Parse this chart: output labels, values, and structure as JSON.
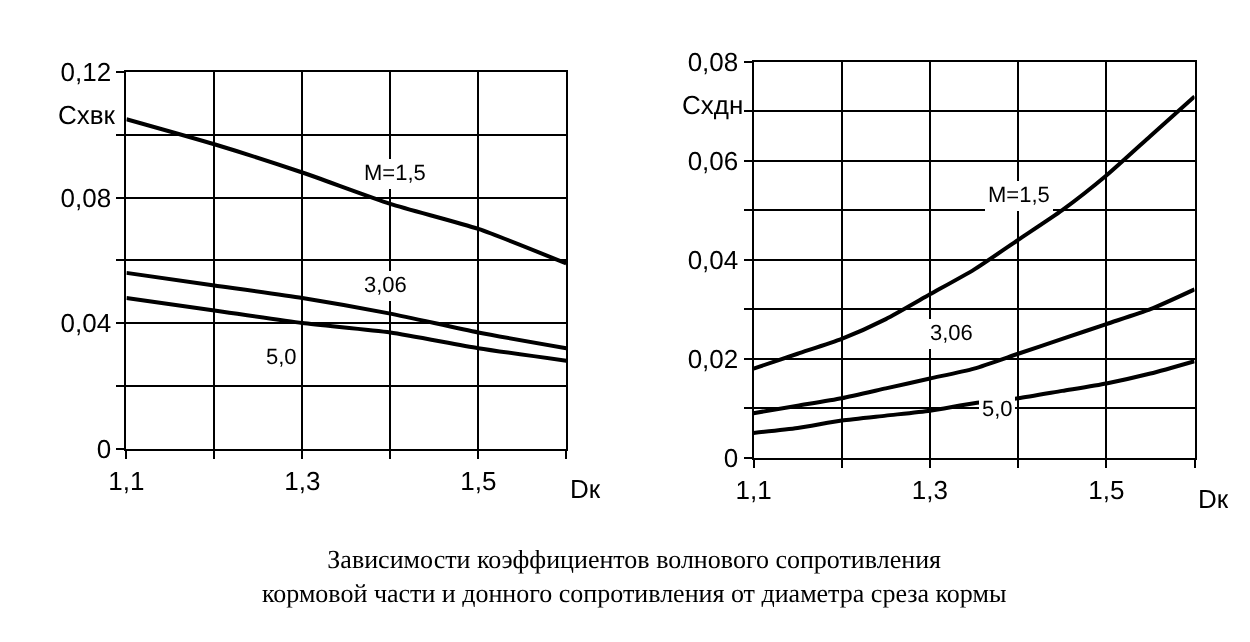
{
  "chart_data": [
    {
      "type": "line",
      "ylabel": "Cхвк",
      "xlabel": "Dк",
      "marker": "none",
      "line_style": "solid",
      "grid": true,
      "x": [
        1.1,
        1.2,
        1.3,
        1.4,
        1.5,
        1.6
      ],
      "xlim": [
        1.1,
        1.6
      ],
      "xticks": [
        {
          "value": 1.1,
          "label": "1,1"
        },
        {
          "value": 1.2,
          "label": null
        },
        {
          "value": 1.3,
          "label": "1,3"
        },
        {
          "value": 1.4,
          "label": null
        },
        {
          "value": 1.5,
          "label": "1,5"
        },
        {
          "value": 1.6,
          "label": null
        }
      ],
      "ylim": [
        0,
        0.12
      ],
      "yticks": [
        {
          "value": 0,
          "label": "0"
        },
        {
          "value": 0.02,
          "label": null
        },
        {
          "value": 0.04,
          "label": "0,04"
        },
        {
          "value": 0.06,
          "label": null
        },
        {
          "value": 0.08,
          "label": "0,08"
        },
        {
          "value": 0.1,
          "label": null
        },
        {
          "value": 0.12,
          "label": "0,12"
        }
      ],
      "series": [
        {
          "name": "M=1,5",
          "color": "#000000",
          "values": [
            0.105,
            0.097,
            0.088,
            0.078,
            0.07,
            0.059
          ]
        },
        {
          "name": "3,06",
          "color": "#000000",
          "values": [
            0.056,
            0.052,
            0.048,
            0.043,
            0.037,
            0.032
          ]
        },
        {
          "name": "5,0",
          "color": "#000000",
          "values": [
            0.048,
            0.044,
            0.04,
            0.037,
            0.032,
            0.028
          ]
        }
      ],
      "annotations": [
        "Зависимости коэффициентов волнового сопротивления\nкормовой части и донного сопротивления от диаметра среза кормы"
      ]
    },
    {
      "type": "line",
      "ylabel": "Cхдн",
      "xlabel": "Dк",
      "marker": "none",
      "line_style": "solid",
      "grid": true,
      "x": [
        1.1,
        1.15,
        1.2,
        1.25,
        1.3,
        1.35,
        1.4,
        1.45,
        1.5,
        1.55,
        1.6
      ],
      "xlim": [
        1.1,
        1.6
      ],
      "xticks": [
        {
          "value": 1.1,
          "label": "1,1"
        },
        {
          "value": 1.2,
          "label": null
        },
        {
          "value": 1.3,
          "label": "1,3"
        },
        {
          "value": 1.4,
          "label": null
        },
        {
          "value": 1.5,
          "label": "1,5"
        },
        {
          "value": 1.6,
          "label": null
        }
      ],
      "ylim": [
        0,
        0.08
      ],
      "yticks": [
        {
          "value": 0,
          "label": "0"
        },
        {
          "value": 0.01,
          "label": null
        },
        {
          "value": 0.02,
          "label": "0,02"
        },
        {
          "value": 0.03,
          "label": null
        },
        {
          "value": 0.04,
          "label": "0,04"
        },
        {
          "value": 0.05,
          "label": null
        },
        {
          "value": 0.06,
          "label": "0,06"
        },
        {
          "value": 0.07,
          "label": null
        },
        {
          "value": 0.08,
          "label": "0,08"
        }
      ],
      "series": [
        {
          "name": "M=1,5",
          "color": "#000000",
          "values": [
            0.018,
            0.021,
            0.024,
            0.028,
            0.033,
            0.038,
            0.044,
            0.05,
            0.057,
            0.065,
            0.073
          ]
        },
        {
          "name": "3,06",
          "color": "#000000",
          "values": [
            0.009,
            0.0105,
            0.012,
            0.014,
            0.016,
            0.018,
            0.021,
            0.024,
            0.027,
            0.03,
            0.034
          ]
        },
        {
          "name": "5,0",
          "color": "#000000",
          "values": [
            0.005,
            0.006,
            0.0075,
            0.0085,
            0.0095,
            0.011,
            0.012,
            0.0135,
            0.015,
            0.017,
            0.0195
          ]
        }
      ]
    }
  ]
}
